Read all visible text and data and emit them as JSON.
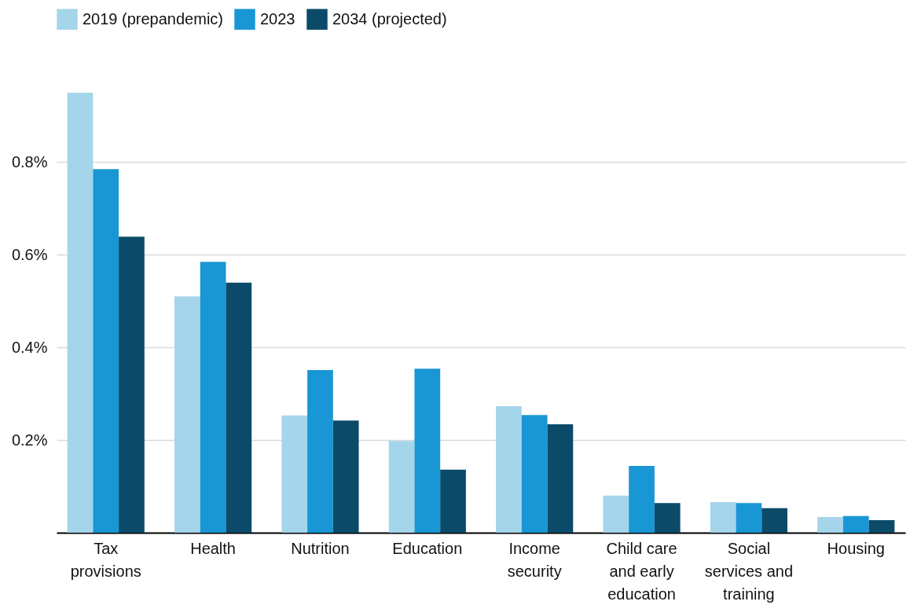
{
  "chart_data": {
    "type": "bar",
    "categories": [
      "Tax provisions",
      "Health",
      "Nutrition",
      "Education",
      "Income security",
      "Child care and early education",
      "Social services and training",
      "Housing"
    ],
    "series": [
      {
        "name": "2019 (prepandemic)",
        "color": "#a4d5eb",
        "values": [
          0.95,
          0.51,
          0.253,
          0.198,
          0.273,
          0.08,
          0.066,
          0.034
        ]
      },
      {
        "name": "2023",
        "color": "#1996d4",
        "values": [
          0.785,
          0.585,
          0.351,
          0.354,
          0.254,
          0.144,
          0.064,
          0.036
        ]
      },
      {
        "name": "2034 (projected)",
        "color": "#0b4b69",
        "values": [
          0.639,
          0.54,
          0.242,
          0.136,
          0.234,
          0.064,
          0.053,
          0.027
        ]
      }
    ],
    "ylim": [
      0,
      0.95
    ],
    "yticks": [
      {
        "value": 0.2,
        "label": "0.2%"
      },
      {
        "value": 0.4,
        "label": "0.4%"
      },
      {
        "value": 0.6,
        "label": "0.6%"
      },
      {
        "value": 0.8,
        "label": "0.8%"
      }
    ],
    "grid": "y",
    "legend": "top left"
  }
}
